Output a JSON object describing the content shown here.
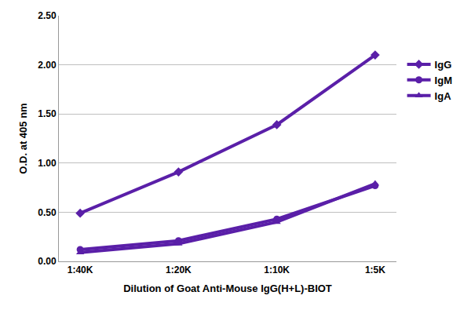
{
  "chart_data": {
    "type": "line",
    "x_label": "Dilution of Goat Anti-Mouse IgG(H+L)-BIOT",
    "y_label": "O.D. at 405 nm",
    "categories": [
      "1:40K",
      "1:20K",
      "1:10K",
      "1:5K"
    ],
    "series": [
      {
        "name": "IgG",
        "color": "#5a1fa8",
        "marker": "diamond",
        "values": [
          0.49,
          0.91,
          1.39,
          2.1
        ]
      },
      {
        "name": "IgM",
        "color": "#5a1fa8",
        "marker": "circle",
        "values": [
          0.12,
          0.21,
          0.43,
          0.77
        ]
      },
      {
        "name": "IgA",
        "color": "#5a1fa8",
        "marker": "triangle-up",
        "values": [
          0.09,
          0.18,
          0.4,
          0.79
        ]
      }
    ],
    "ylim": [
      0,
      2.5
    ],
    "yticks": [
      {
        "value": 0,
        "label": "0.00"
      },
      {
        "value": 0.5,
        "label": "0.50"
      },
      {
        "value": 1,
        "label": "1.00"
      },
      {
        "value": 1.5,
        "label": "1.50"
      },
      {
        "value": 2,
        "label": "2.00"
      },
      {
        "value": 2.5,
        "label": "2.50"
      }
    ],
    "grid": true,
    "legend": "right"
  }
}
